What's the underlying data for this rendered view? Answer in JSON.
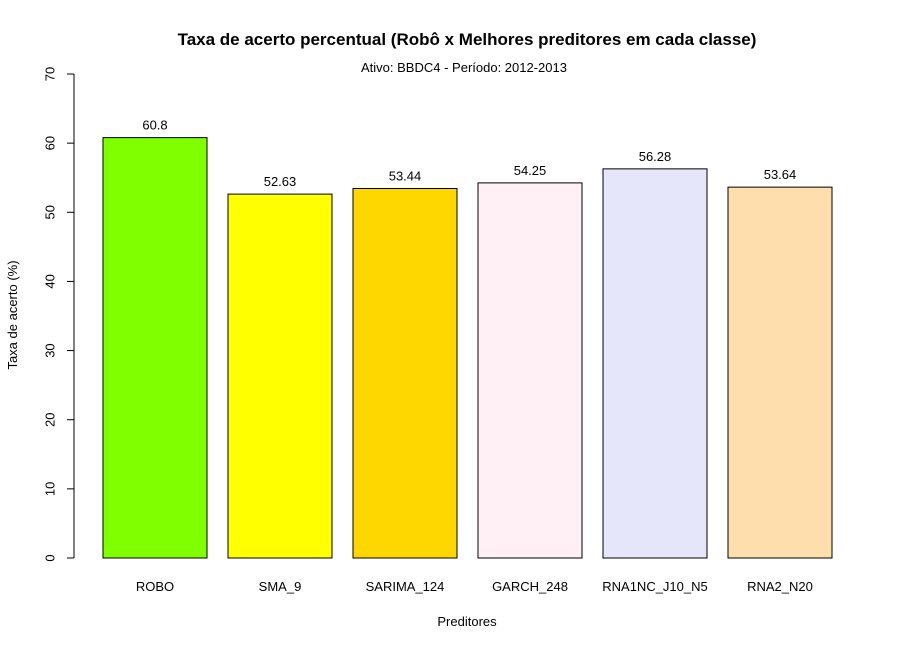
{
  "chart_data": {
    "type": "bar",
    "title": "Taxa de acerto percentual (Robô x Melhores preditores em cada classe)",
    "subtitle": "Ativo:  BBDC4  - Período: 2012-2013",
    "xlabel": "Preditores",
    "ylabel": "Taxa de acerto (%)",
    "ylim": [
      0,
      70
    ],
    "yticks": [
      0,
      10,
      20,
      30,
      40,
      50,
      60,
      70
    ],
    "categories": [
      "ROBO",
      "SMA_9",
      "SARIMA_124",
      "GARCH_248",
      "RNA1NC_J10_N5",
      "RNA2_N20"
    ],
    "values": [
      60.8,
      52.63,
      53.44,
      54.25,
      56.28,
      53.64
    ],
    "value_labels": [
      "60.8",
      "52.63",
      "53.44",
      "54.25",
      "56.28",
      "53.64"
    ],
    "colors": [
      "#7FFF00",
      "#FFFF00",
      "#FFD700",
      "#FFF0F5",
      "#E6E6FA",
      "#FFDEAD"
    ],
    "grid": false,
    "legend": "none"
  }
}
